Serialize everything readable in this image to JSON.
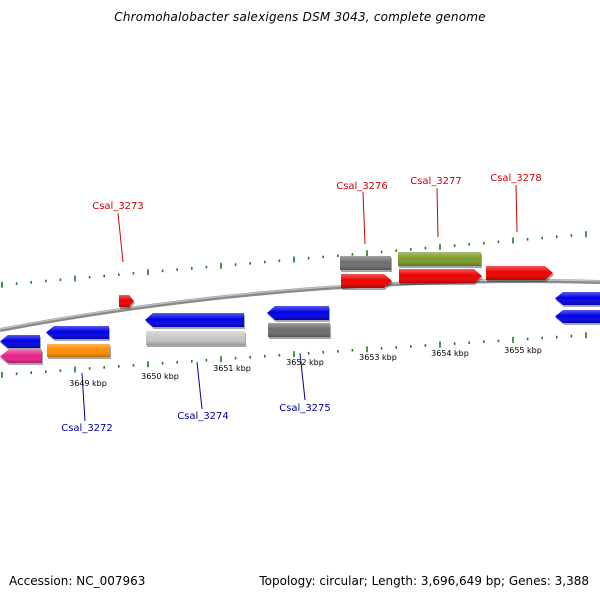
{
  "title": "Chromohalobacter salexigens DSM 3043, complete genome",
  "footer": {
    "accession": "Accession: NC_007963",
    "summary": "Topology: circular; Length: 3,696,649 bp; Genes: 3,388"
  },
  "colors": {
    "forward_label": "#cc0000",
    "reverse_label": "#000099",
    "tick": "#1e7a1e",
    "backbone": "#808080"
  },
  "scale_ticks": [
    {
      "label": "3649 kbp"
    },
    {
      "label": "3650 kbp"
    },
    {
      "label": "3651 kbp"
    },
    {
      "label": "3652 kbp"
    },
    {
      "label": "3653 kbp"
    },
    {
      "label": "3654 kbp"
    },
    {
      "label": "3655 kbp"
    }
  ],
  "forward_labels": [
    {
      "name": "Csal_3273"
    },
    {
      "name": "Csal_3276"
    },
    {
      "name": "Csal_3277"
    },
    {
      "name": "Csal_3278"
    }
  ],
  "reverse_labels": [
    {
      "name": "Csal_3272"
    },
    {
      "name": "Csal_3274"
    },
    {
      "name": "Csal_3275"
    }
  ],
  "features": [
    {
      "id": "pink-left",
      "color": "#e8208a",
      "strand": "reverse"
    },
    {
      "id": "blue-left",
      "color": "#0000e6",
      "strand": "reverse"
    },
    {
      "id": "Csal_3272",
      "color": "#0000e6",
      "strand": "reverse"
    },
    {
      "id": "Csal_3272-cds",
      "color": "#ff8c00",
      "strand": "reverse"
    },
    {
      "id": "Csal_3273",
      "color": "#ee0000",
      "strand": "forward"
    },
    {
      "id": "Csal_3274",
      "color": "#0000e6",
      "strand": "reverse"
    },
    {
      "id": "Csal_3274-cds",
      "color": "#c8c8c8",
      "strand": "reverse"
    },
    {
      "id": "Csal_3275",
      "color": "#0000e6",
      "strand": "reverse"
    },
    {
      "id": "Csal_3275-cds",
      "color": "#6e6e6e",
      "strand": "reverse"
    },
    {
      "id": "Csal_3276",
      "color": "#6e6e6e",
      "strand": "forward"
    },
    {
      "id": "Csal_3276-cds",
      "color": "#ee0000",
      "strand": "forward"
    },
    {
      "id": "Csal_3277",
      "color": "#7a9a2a",
      "strand": "forward"
    },
    {
      "id": "Csal_3277-cds",
      "color": "#ee0000",
      "strand": "forward"
    },
    {
      "id": "Csal_3278",
      "color": "#ee0000",
      "strand": "forward"
    },
    {
      "id": "blue-right-1",
      "color": "#0000e6",
      "strand": "reverse"
    },
    {
      "id": "blue-right-2",
      "color": "#0000e6",
      "strand": "reverse"
    }
  ]
}
